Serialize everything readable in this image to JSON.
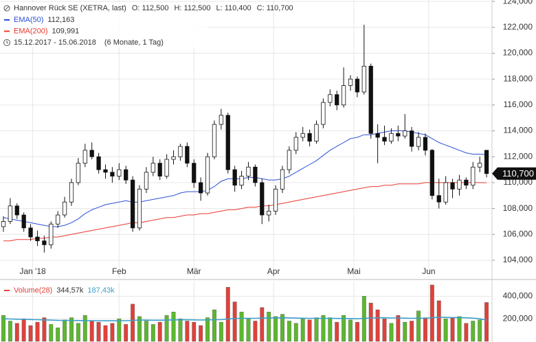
{
  "chart_data": {
    "type": "candlestick",
    "title": "Hannover Rück SE (XETRA, last)",
    "ohlc_text": [
      "O: 112,500",
      "H: 112,500",
      "L: 110,400",
      "C: 110,700"
    ],
    "period": "15.12.2017 - 15.06.2018",
    "interval": "(6 Monate, 1 Tag)",
    "last_label": "110,700",
    "up_color": "#5cb82e",
    "down_color": "#e0413a",
    "x": [
      0,
      1,
      2,
      3,
      4,
      5,
      6,
      7,
      8,
      9,
      10,
      11,
      12,
      13,
      14,
      15,
      16,
      17,
      18,
      19,
      20,
      21,
      22,
      23,
      24,
      25,
      26,
      27,
      28,
      29,
      30,
      31,
      32,
      33,
      34,
      35,
      36,
      37,
      38,
      39,
      40,
      41,
      42,
      43,
      44,
      45,
      46,
      47,
      48,
      49,
      50,
      51,
      52,
      53,
      54,
      55,
      56,
      57,
      58,
      59,
      60,
      61,
      62,
      63,
      64,
      65,
      66,
      67,
      68,
      69,
      70,
      71
    ],
    "open": [
      106600,
      107000,
      108200,
      107500,
      106500,
      105800,
      105500,
      105200,
      106800,
      107500,
      108500,
      110000,
      111500,
      112500,
      112000,
      111000,
      110800,
      110500,
      111000,
      110200,
      106500,
      109500,
      110800,
      111500,
      110500,
      111800,
      112000,
      112800,
      111500,
      110000,
      109200,
      112000,
      114500,
      115200,
      111000,
      109800,
      110500,
      111200,
      110000,
      107500,
      107800,
      109500,
      111000,
      112500,
      113500,
      113800,
      113200,
      114500,
      116200,
      116800,
      116000,
      117500,
      118000,
      117000,
      119000,
      113800,
      113500,
      113200,
      113800,
      113600,
      114000,
      112800,
      113500,
      112500,
      109000,
      108500,
      110000,
      109500,
      110200,
      109800,
      111200,
      112500
    ],
    "high": [
      107400,
      108800,
      108400,
      107700,
      106800,
      106300,
      105900,
      107000,
      107800,
      108900,
      110300,
      111900,
      113000,
      113100,
      112300,
      111400,
      111200,
      111500,
      111300,
      110500,
      109800,
      111200,
      112000,
      111800,
      112200,
      112500,
      113000,
      113100,
      111800,
      110400,
      112300,
      114800,
      115700,
      115400,
      111300,
      110900,
      111600,
      111400,
      110300,
      108300,
      109800,
      111300,
      112800,
      113900,
      114300,
      114100,
      114800,
      116500,
      117200,
      117100,
      118900,
      118300,
      118200,
      122200,
      119200,
      114500,
      114400,
      114200,
      114400,
      115300,
      114300,
      113900,
      113800,
      112600,
      110300,
      110500,
      110300,
      110600,
      110400,
      111600,
      112000,
      112500
    ],
    "low": [
      106200,
      106800,
      107200,
      106200,
      105500,
      105100,
      104600,
      104900,
      106500,
      107300,
      108200,
      109800,
      111200,
      111800,
      110700,
      110300,
      110000,
      110200,
      109900,
      106200,
      106300,
      109200,
      110500,
      110200,
      110300,
      111400,
      111700,
      111200,
      109600,
      108600,
      109000,
      111800,
      114100,
      110700,
      109300,
      109500,
      110200,
      109700,
      106800,
      107000,
      107500,
      109200,
      110700,
      112200,
      113200,
      112800,
      113000,
      114200,
      115900,
      115600,
      115800,
      117100,
      116600,
      116800,
      113400,
      111500,
      112900,
      113000,
      113200,
      113400,
      112400,
      112500,
      112100,
      108700,
      108000,
      108300,
      108800,
      109000,
      109500,
      109500,
      110800,
      110400
    ],
    "close": [
      107000,
      108200,
      107500,
      106500,
      105800,
      105500,
      105200,
      106800,
      107500,
      108500,
      110000,
      111500,
      112500,
      112000,
      111000,
      110800,
      110500,
      111000,
      110200,
      106500,
      109500,
      110800,
      111500,
      110500,
      111800,
      112000,
      112800,
      111500,
      110000,
      109200,
      112000,
      114500,
      115200,
      111000,
      109800,
      110500,
      111200,
      110000,
      107500,
      107800,
      109500,
      111000,
      112500,
      113500,
      113800,
      113200,
      114500,
      116200,
      116800,
      116000,
      117500,
      118000,
      117000,
      119000,
      113800,
      113500,
      113200,
      113800,
      113600,
      114000,
      112800,
      113500,
      112500,
      109000,
      108500,
      110000,
      109500,
      110200,
      109800,
      111200,
      111500,
      110700
    ],
    "lines": [
      {
        "name": "EMA(50)",
        "value_label": "112,163",
        "color": "#2a4fd6",
        "values": [
          107300,
          107200,
          107100,
          107000,
          106900,
          106800,
          106700,
          106600,
          106600,
          106700,
          106900,
          107200,
          107600,
          107900,
          108100,
          108300,
          108400,
          108500,
          108600,
          108500,
          108500,
          108600,
          108700,
          108800,
          108900,
          109000,
          109200,
          109300,
          109300,
          109300,
          109400,
          109700,
          110100,
          110300,
          110300,
          110300,
          110400,
          110400,
          110300,
          110200,
          110200,
          110300,
          110500,
          110800,
          111100,
          111400,
          111700,
          112100,
          112500,
          112800,
          113100,
          113400,
          113500,
          113700,
          113700,
          113800,
          113900,
          114000,
          114000,
          114000,
          113900,
          113800,
          113700,
          113400,
          113100,
          112900,
          112700,
          112500,
          112300,
          112200,
          112200,
          112163
        ]
      },
      {
        "name": "EMA(200)",
        "value_label": "109,991",
        "color": "#e8392e",
        "values": [
          105500,
          105500,
          105600,
          105600,
          105600,
          105700,
          105700,
          105800,
          105800,
          105900,
          106000,
          106100,
          106200,
          106300,
          106400,
          106500,
          106600,
          106700,
          106800,
          106900,
          106900,
          107000,
          107100,
          107200,
          107300,
          107300,
          107400,
          107500,
          107500,
          107600,
          107600,
          107700,
          107800,
          107900,
          107900,
          108000,
          108100,
          108100,
          108200,
          108200,
          108300,
          108400,
          108500,
          108600,
          108700,
          108800,
          108900,
          109000,
          109100,
          109200,
          109300,
          109400,
          109500,
          109600,
          109700,
          109700,
          109800,
          109800,
          109900,
          109900,
          109900,
          109900,
          110000,
          110000,
          110000,
          110000,
          110000,
          110000,
          110000,
          110000,
          110000,
          109991
        ]
      }
    ],
    "xlim": [
      -0.5,
      71.7
    ],
    "xticks": [
      {
        "value": 4.3,
        "label": "Jan '18"
      },
      {
        "value": 17,
        "label": "Feb"
      },
      {
        "value": 28,
        "label": "Mär"
      },
      {
        "value": 39.7,
        "label": "Apr"
      },
      {
        "value": 51.5,
        "label": "Mai"
      },
      {
        "value": 62.5,
        "label": "Jun"
      }
    ],
    "ylim": [
      102620,
      124110
    ],
    "yticks": [
      {
        "value": 104000,
        "label": "104,000"
      },
      {
        "value": 106000,
        "label": "106,000"
      },
      {
        "value": 108000,
        "label": "108,000"
      },
      {
        "value": 110000,
        "label": "110,000"
      },
      {
        "value": 112000,
        "label": "112,000"
      },
      {
        "value": 114000,
        "label": "114,000"
      },
      {
        "value": 116000,
        "label": "116,000"
      },
      {
        "value": 118000,
        "label": "118,000"
      },
      {
        "value": 120000,
        "label": "120,000"
      },
      {
        "value": 122000,
        "label": "122,000"
      },
      {
        "value": 124000,
        "label": "124,000"
      }
    ],
    "grid": true,
    "volume": {
      "name": "Volume(28)",
      "last_label": "344,57k",
      "avg_label": "187,43k",
      "avg_color": "#3a9fc8",
      "values": [
        230000,
        180000,
        160000,
        200000,
        140000,
        170000,
        210000,
        150000,
        120000,
        190000,
        210000,
        160000,
        230000,
        180000,
        170000,
        140000,
        160000,
        200000,
        150000,
        330000,
        220000,
        180000,
        150000,
        170000,
        230000,
        260000,
        200000,
        180000,
        170000,
        140000,
        210000,
        280000,
        170000,
        480000,
        350000,
        260000,
        200000,
        180000,
        300000,
        260000,
        220000,
        240000,
        180000,
        160000,
        200000,
        190000,
        210000,
        230000,
        210000,
        170000,
        230000,
        190000,
        170000,
        400000,
        340000,
        280000,
        200000,
        160000,
        230000,
        170000,
        180000,
        270000,
        210000,
        500000,
        360000,
        200000,
        210000,
        220000,
        160000,
        180000,
        190000,
        344570
      ],
      "avg_values": [
        200000,
        198000,
        196000,
        195000,
        193000,
        192000,
        190000,
        188000,
        186000,
        185000,
        185000,
        184000,
        184000,
        183000,
        183000,
        182000,
        182000,
        183000,
        183000,
        186000,
        188000,
        188000,
        187000,
        187000,
        188000,
        190000,
        191000,
        191000,
        190000,
        189000,
        190000,
        192000,
        192000,
        198000,
        202000,
        204000,
        204000,
        204000,
        206000,
        208000,
        208000,
        209000,
        208000,
        206000,
        205000,
        204000,
        204000,
        204000,
        204000,
        203000,
        203000,
        202000,
        200000,
        204000,
        207000,
        209000,
        209000,
        207000,
        207000,
        205000,
        204000,
        205000,
        204000,
        210000,
        213000,
        212000,
        211000,
        211000,
        209000,
        205000,
        200000,
        187430
      ],
      "ylim": [
        0,
        530000
      ],
      "yticks": [
        {
          "value": 200000,
          "label": "200,000"
        },
        {
          "value": 400000,
          "label": "400,000"
        }
      ]
    }
  }
}
